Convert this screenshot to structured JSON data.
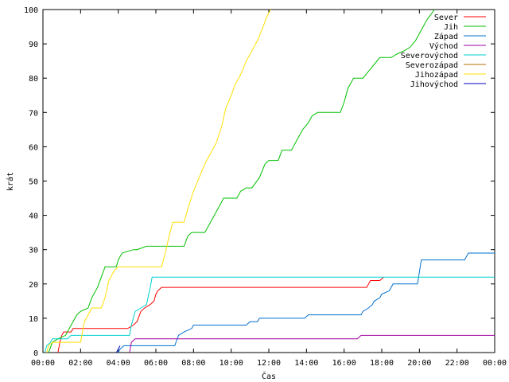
{
  "chart_data": {
    "type": "line",
    "title": "",
    "xlabel": "Čas",
    "ylabel": "krát",
    "xlim": [
      0,
      24
    ],
    "ylim": [
      0,
      100
    ],
    "x_ticks": [
      {
        "v": 0,
        "label": "00:00"
      },
      {
        "v": 2,
        "label": "02:00"
      },
      {
        "v": 4,
        "label": "04:00"
      },
      {
        "v": 6,
        "label": "06:00"
      },
      {
        "v": 8,
        "label": "08:00"
      },
      {
        "v": 10,
        "label": "10:00"
      },
      {
        "v": 12,
        "label": "12:00"
      },
      {
        "v": 14,
        "label": "14:00"
      },
      {
        "v": 16,
        "label": "16:00"
      },
      {
        "v": 18,
        "label": "18:00"
      },
      {
        "v": 20,
        "label": "20:00"
      },
      {
        "v": 22,
        "label": "22:00"
      },
      {
        "v": 24,
        "label": "00:00"
      }
    ],
    "y_ticks": [
      {
        "v": 0,
        "label": "0"
      },
      {
        "v": 10,
        "label": "10"
      },
      {
        "v": 20,
        "label": "20"
      },
      {
        "v": 30,
        "label": "30"
      },
      {
        "v": 40,
        "label": "40"
      },
      {
        "v": 50,
        "label": "50"
      },
      {
        "v": 60,
        "label": "60"
      },
      {
        "v": 70,
        "label": "70"
      },
      {
        "v": 80,
        "label": "80"
      },
      {
        "v": 90,
        "label": "90"
      },
      {
        "v": 100,
        "label": "100"
      }
    ],
    "grid": false,
    "legend": "top-right",
    "series": [
      {
        "name": "Sever",
        "color": "#ff0000",
        "points": [
          [
            0.8,
            0
          ],
          [
            0.9,
            3
          ],
          [
            1.0,
            5
          ],
          [
            1.1,
            6
          ],
          [
            1.5,
            6
          ],
          [
            1.6,
            7
          ],
          [
            4.5,
            7
          ],
          [
            4.8,
            8
          ],
          [
            5.0,
            9
          ],
          [
            5.2,
            12
          ],
          [
            5.4,
            13
          ],
          [
            5.7,
            14
          ],
          [
            5.9,
            15
          ],
          [
            6.0,
            17
          ],
          [
            6.1,
            18
          ],
          [
            6.3,
            19
          ],
          [
            17.2,
            19
          ],
          [
            17.4,
            21
          ],
          [
            17.9,
            21
          ],
          [
            18.1,
            22
          ]
        ]
      },
      {
        "name": "Jih",
        "color": "#00c000",
        "points": [
          [
            0.3,
            0
          ],
          [
            0.5,
            3
          ],
          [
            0.8,
            4
          ],
          [
            1.2,
            5
          ],
          [
            1.5,
            8
          ],
          [
            1.8,
            11
          ],
          [
            2.0,
            12
          ],
          [
            2.4,
            13
          ],
          [
            2.6,
            16
          ],
          [
            2.9,
            19
          ],
          [
            3.1,
            22
          ],
          [
            3.3,
            25
          ],
          [
            3.9,
            25
          ],
          [
            4.0,
            27
          ],
          [
            4.2,
            29
          ],
          [
            4.8,
            30
          ],
          [
            5.0,
            30
          ],
          [
            5.5,
            31
          ],
          [
            7.5,
            31
          ],
          [
            7.7,
            34
          ],
          [
            7.9,
            35
          ],
          [
            8.6,
            35
          ],
          [
            8.8,
            37
          ],
          [
            9.1,
            40
          ],
          [
            9.4,
            43
          ],
          [
            9.6,
            45
          ],
          [
            10.3,
            45
          ],
          [
            10.5,
            47
          ],
          [
            10.8,
            48
          ],
          [
            11.1,
            48
          ],
          [
            11.5,
            51
          ],
          [
            11.8,
            55
          ],
          [
            12.0,
            56
          ],
          [
            12.5,
            56
          ],
          [
            12.7,
            59
          ],
          [
            13.2,
            59
          ],
          [
            13.5,
            62
          ],
          [
            13.8,
            65
          ],
          [
            14.1,
            67
          ],
          [
            14.3,
            69
          ],
          [
            14.6,
            70
          ],
          [
            15.8,
            70
          ],
          [
            16.0,
            73
          ],
          [
            16.2,
            77
          ],
          [
            16.5,
            80
          ],
          [
            17.0,
            80
          ],
          [
            17.3,
            82
          ],
          [
            17.6,
            84
          ],
          [
            17.9,
            86
          ],
          [
            18.5,
            86
          ],
          [
            18.8,
            87
          ],
          [
            19.2,
            88
          ],
          [
            19.5,
            89
          ],
          [
            19.8,
            91
          ],
          [
            20.1,
            94
          ],
          [
            20.4,
            97
          ],
          [
            20.8,
            100
          ]
        ]
      },
      {
        "name": "Západ",
        "color": "#0070d0",
        "points": [
          [
            4.0,
            0
          ],
          [
            4.1,
            1
          ],
          [
            4.3,
            2
          ],
          [
            7.0,
            2
          ],
          [
            7.2,
            5
          ],
          [
            7.5,
            6
          ],
          [
            7.9,
            7
          ],
          [
            8.0,
            8
          ],
          [
            10.8,
            8
          ],
          [
            11.0,
            9
          ],
          [
            11.4,
            9
          ],
          [
            11.5,
            10
          ],
          [
            13.9,
            10
          ],
          [
            14.1,
            11
          ],
          [
            16.9,
            11
          ],
          [
            17.0,
            12
          ],
          [
            17.3,
            13
          ],
          [
            17.5,
            14
          ],
          [
            17.6,
            15
          ],
          [
            17.9,
            16
          ],
          [
            18.0,
            17
          ],
          [
            18.4,
            18
          ],
          [
            18.6,
            20
          ],
          [
            19.9,
            20
          ],
          [
            20.1,
            27
          ],
          [
            22.4,
            27
          ],
          [
            22.6,
            29
          ],
          [
            24,
            29
          ]
        ]
      },
      {
        "name": "Východ",
        "color": "#a000a0",
        "points": [
          [
            4.6,
            0
          ],
          [
            4.7,
            3
          ],
          [
            4.9,
            4
          ],
          [
            16.7,
            4
          ],
          [
            16.9,
            5
          ],
          [
            24,
            5
          ]
        ]
      },
      {
        "name": "Severovýchod",
        "color": "#00d0d0",
        "points": [
          [
            0.1,
            0
          ],
          [
            0.2,
            2
          ],
          [
            0.4,
            3
          ],
          [
            0.5,
            4
          ],
          [
            1.3,
            4
          ],
          [
            1.5,
            5
          ],
          [
            4.6,
            5
          ],
          [
            4.7,
            8
          ],
          [
            4.8,
            10
          ],
          [
            4.9,
            12
          ],
          [
            5.2,
            13
          ],
          [
            5.5,
            14
          ],
          [
            5.7,
            19
          ],
          [
            5.8,
            22
          ],
          [
            24,
            22
          ]
        ]
      },
      {
        "name": "Severozápad",
        "color": "#b07000",
        "points": []
      },
      {
        "name": "Jihozápad",
        "color": "#ffe000",
        "points": [
          [
            0.2,
            0
          ],
          [
            0.3,
            2
          ],
          [
            0.5,
            3
          ],
          [
            2.0,
            3
          ],
          [
            2.2,
            9
          ],
          [
            2.4,
            11
          ],
          [
            2.6,
            13
          ],
          [
            3.1,
            13
          ],
          [
            3.3,
            16
          ],
          [
            3.5,
            21
          ],
          [
            3.8,
            24
          ],
          [
            4.0,
            25
          ],
          [
            6.3,
            25
          ],
          [
            6.5,
            29
          ],
          [
            6.7,
            34
          ],
          [
            6.9,
            38
          ],
          [
            7.5,
            38
          ],
          [
            7.7,
            42
          ],
          [
            8.0,
            47
          ],
          [
            8.3,
            51
          ],
          [
            8.6,
            55
          ],
          [
            8.9,
            58
          ],
          [
            9.2,
            61
          ],
          [
            9.5,
            66
          ],
          [
            9.7,
            71
          ],
          [
            10.0,
            75
          ],
          [
            10.2,
            78
          ],
          [
            10.5,
            81
          ],
          [
            10.8,
            85
          ],
          [
            11.1,
            88
          ],
          [
            11.4,
            91
          ],
          [
            11.7,
            95
          ],
          [
            11.9,
            98
          ],
          [
            12.1,
            100
          ]
        ]
      },
      {
        "name": "Jihovýchod",
        "color": "#0000c0",
        "points": [
          [
            3.9,
            0
          ],
          [
            4.0,
            1
          ],
          [
            4.1,
            2
          ]
        ]
      }
    ]
  }
}
